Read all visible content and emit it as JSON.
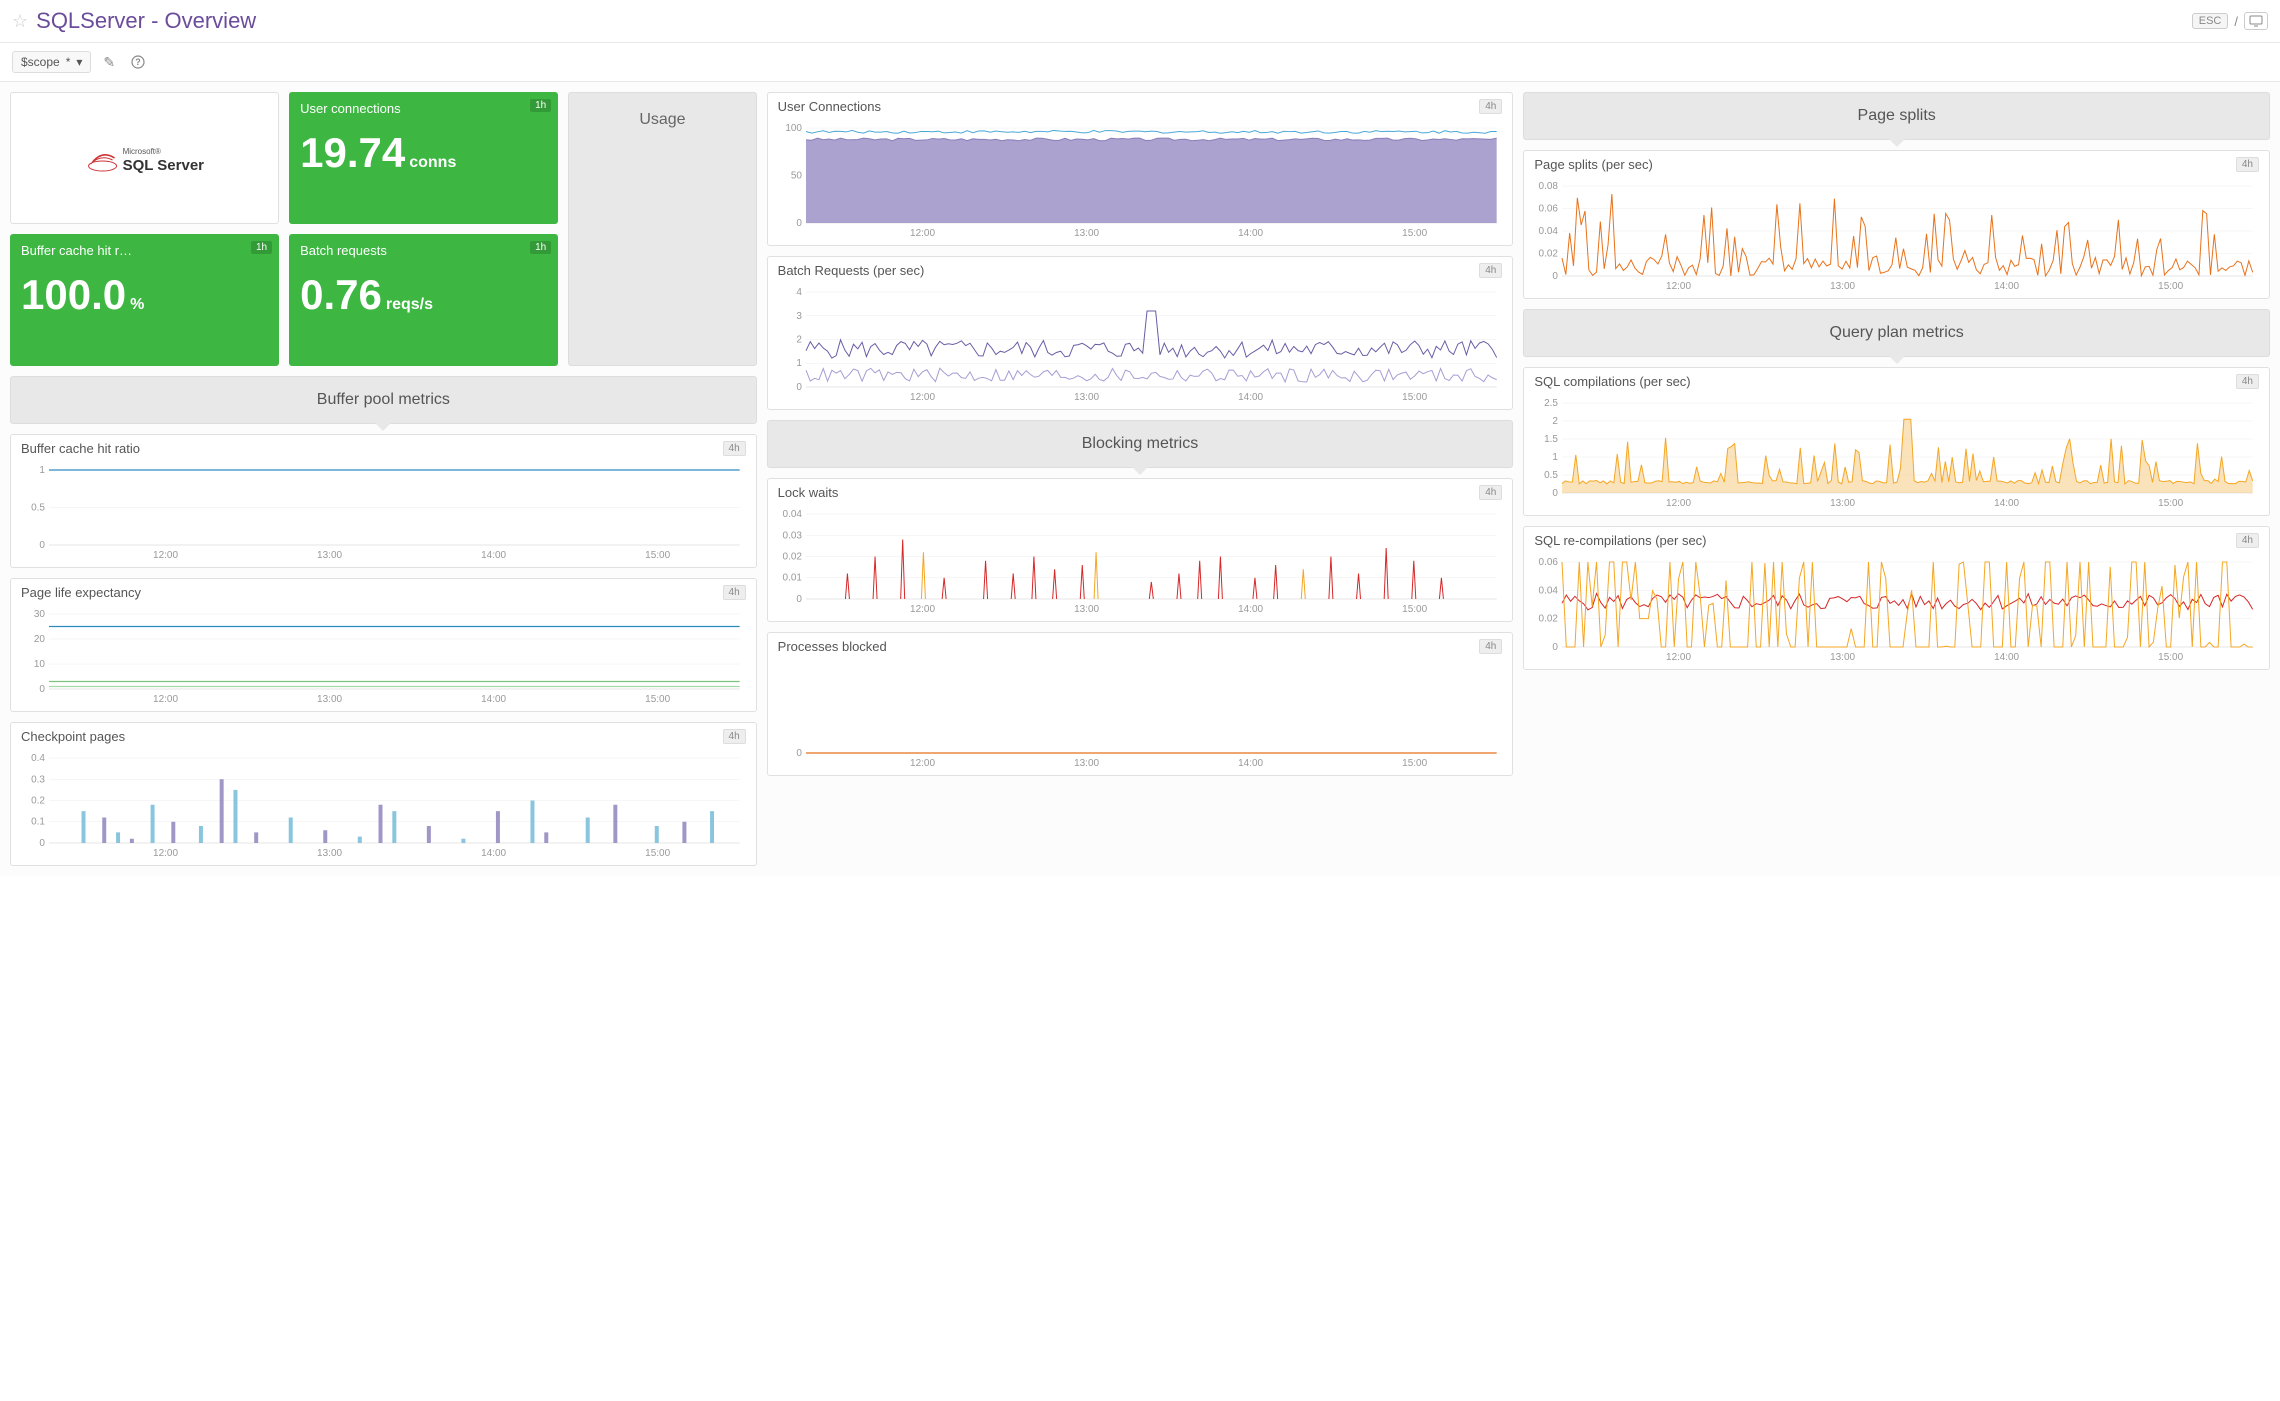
{
  "header": {
    "title": "SQLServer - Overview",
    "esc_label": "ESC"
  },
  "toolbar": {
    "scope_label": "$scope",
    "scope_value": "*"
  },
  "tiles": {
    "user_connections": {
      "title": "User connections",
      "badge": "1h",
      "value": "19.74",
      "unit": "conns"
    },
    "buffer_cache_hit": {
      "title": "Buffer cache hit r…",
      "badge": "1h",
      "value": "100.0",
      "unit": "%"
    },
    "batch_requests": {
      "title": "Batch requests",
      "badge": "1h",
      "value": "0.76",
      "unit": "reqs/s"
    },
    "usage": {
      "title": "Usage"
    },
    "logo_top": "Microsoft®",
    "logo_main": "SQL Server"
  },
  "sections": {
    "page_splits": "Page splits",
    "query_plan": "Query plan metrics",
    "buffer_pool": "Buffer pool metrics",
    "blocking": "Blocking metrics"
  },
  "charts": {
    "user_connections": {
      "title": "User Connections",
      "badge": "4h",
      "type": "area",
      "ylim": [
        0,
        100
      ],
      "yticks": [
        50,
        100
      ],
      "xticks": [
        "12:00",
        "13:00",
        "14:00",
        "15:00"
      ],
      "series": [
        {
          "color": "#8a7db8",
          "fill": "#9e92c7",
          "opacity": 0.85,
          "baseline": 88
        },
        {
          "color": "#4aa8d8",
          "fill": "none",
          "opacity": 1,
          "baseline": 96
        }
      ]
    },
    "batch_requests": {
      "title": "Batch Requests (per sec)",
      "badge": "4h",
      "type": "line",
      "ylim": [
        0,
        4
      ],
      "yticks": [
        1,
        2,
        3,
        4
      ],
      "xticks": [
        "12:00",
        "13:00",
        "14:00",
        "15:00"
      ],
      "series": [
        {
          "color": "#6b5ca5",
          "baseline": 1.6,
          "amplitude": 0.4,
          "spike_at": 0.5,
          "spike_val": 3.2
        },
        {
          "color": "#a89cd4",
          "baseline": 0.5,
          "amplitude": 0.3
        }
      ]
    },
    "page_splits": {
      "title": "Page splits (per sec)",
      "badge": "4h",
      "type": "spikes",
      "ylim": [
        0,
        0.08
      ],
      "yticks": [
        0.02,
        0.04,
        0.06,
        0.08
      ],
      "xticks": [
        "12:00",
        "13:00",
        "14:00",
        "15:00"
      ],
      "color": "#e8721b",
      "baseline_amp": 0.018,
      "spike_amp": 0.055,
      "spike_count": 18
    },
    "sql_compilations": {
      "title": "SQL compilations (per sec)",
      "badge": "4h",
      "type": "area-spikes",
      "ylim": [
        0,
        2.5
      ],
      "yticks": [
        0.5,
        1,
        1.5,
        2,
        2.5
      ],
      "xticks": [
        "12:00",
        "13:00",
        "14:00",
        "15:00"
      ],
      "color": "#f5a623",
      "fill": "#f5c678",
      "baseline": 0.25,
      "spike_amp": 1.3,
      "spike_count": 20,
      "big_spike_at": 0.5,
      "big_spike_val": 2.05
    },
    "sql_recompilations": {
      "title": "SQL re-compilations (per sec)",
      "badge": "4h",
      "type": "noisy-line",
      "ylim": [
        0,
        0.06
      ],
      "yticks": [
        0.02,
        0.04,
        0.06
      ],
      "xticks": [
        "12:00",
        "13:00",
        "14:00",
        "15:00"
      ],
      "series": [
        {
          "color": "#d62728",
          "baseline": 0.032,
          "amplitude": 0.006
        },
        {
          "color": "#f5a623",
          "baseline": 0.001,
          "spike_at": 0.12,
          "spike_val": 0.02
        }
      ]
    },
    "buffer_cache_ratio": {
      "title": "Buffer cache hit ratio",
      "badge": "4h",
      "type": "flat",
      "ylim": [
        0,
        1
      ],
      "yticks": [
        0.5,
        1
      ],
      "xticks": [
        "12:00",
        "13:00",
        "14:00",
        "15:00"
      ],
      "color": "#2e8bc0",
      "value": 1.0
    },
    "page_life": {
      "title": "Page life expectancy",
      "badge": "4h",
      "type": "flat-multi",
      "ylim": [
        0,
        30
      ],
      "yticks": [
        10,
        20,
        30
      ],
      "xticks": [
        "12:00",
        "13:00",
        "14:00",
        "15:00"
      ],
      "series": [
        {
          "color": "#2e8bc0",
          "value": 25
        },
        {
          "color": "#7cc47c",
          "value": 3
        },
        {
          "color": "#a8d8a8",
          "value": 1
        }
      ]
    },
    "checkpoint_pages": {
      "title": "Checkpoint pages",
      "badge": "4h",
      "type": "bars",
      "ylim": [
        0,
        0.4
      ],
      "yticks": [
        0.1,
        0.2,
        0.3,
        0.4
      ],
      "xticks": [
        "12:00",
        "13:00",
        "14:00",
        "15:00"
      ],
      "colors": [
        "#6bb8d6",
        "#8a7db8"
      ],
      "bars": [
        [
          0.05,
          0.15
        ],
        [
          0.08,
          0.12
        ],
        [
          0.1,
          0.05
        ],
        [
          0.12,
          0.02
        ],
        [
          0.15,
          0.18
        ],
        [
          0.18,
          0.1
        ],
        [
          0.22,
          0.08
        ],
        [
          0.25,
          0.3
        ],
        [
          0.27,
          0.25
        ],
        [
          0.3,
          0.05
        ],
        [
          0.35,
          0.12
        ],
        [
          0.4,
          0.06
        ],
        [
          0.45,
          0.03
        ],
        [
          0.48,
          0.18
        ],
        [
          0.5,
          0.15
        ],
        [
          0.55,
          0.08
        ],
        [
          0.6,
          0.02
        ],
        [
          0.65,
          0.15
        ],
        [
          0.7,
          0.2
        ],
        [
          0.72,
          0.05
        ],
        [
          0.78,
          0.12
        ],
        [
          0.82,
          0.18
        ],
        [
          0.88,
          0.08
        ],
        [
          0.92,
          0.1
        ],
        [
          0.96,
          0.15
        ]
      ]
    },
    "lock_waits": {
      "title": "Lock waits",
      "badge": "4h",
      "type": "spikes",
      "ylim": [
        0,
        0.04
      ],
      "yticks": [
        0.01,
        0.02,
        0.03,
        0.04
      ],
      "xticks": [
        "12:00",
        "13:00",
        "14:00",
        "15:00"
      ],
      "color": "#d62728",
      "color2": "#f5a623",
      "spikes": [
        [
          0.06,
          0.012
        ],
        [
          0.1,
          0.02
        ],
        [
          0.14,
          0.028
        ],
        [
          0.17,
          0.022
        ],
        [
          0.2,
          0.01
        ],
        [
          0.26,
          0.018
        ],
        [
          0.3,
          0.012
        ],
        [
          0.33,
          0.02
        ],
        [
          0.36,
          0.014
        ],
        [
          0.4,
          0.016
        ],
        [
          0.42,
          0.022
        ],
        [
          0.5,
          0.008
        ],
        [
          0.54,
          0.012
        ],
        [
          0.57,
          0.018
        ],
        [
          0.6,
          0.02
        ],
        [
          0.65,
          0.01
        ],
        [
          0.68,
          0.016
        ],
        [
          0.72,
          0.014
        ],
        [
          0.76,
          0.02
        ],
        [
          0.8,
          0.012
        ],
        [
          0.84,
          0.024
        ],
        [
          0.88,
          0.018
        ],
        [
          0.92,
          0.01
        ]
      ]
    },
    "processes_blocked": {
      "title": "Processes blocked",
      "badge": "4h",
      "type": "flat",
      "ylim": [
        0,
        1
      ],
      "yticks": [],
      "xticks": [
        "12:00",
        "13:00",
        "14:00",
        "15:00"
      ],
      "color": "#e8721b",
      "value": 0.0
    }
  }
}
